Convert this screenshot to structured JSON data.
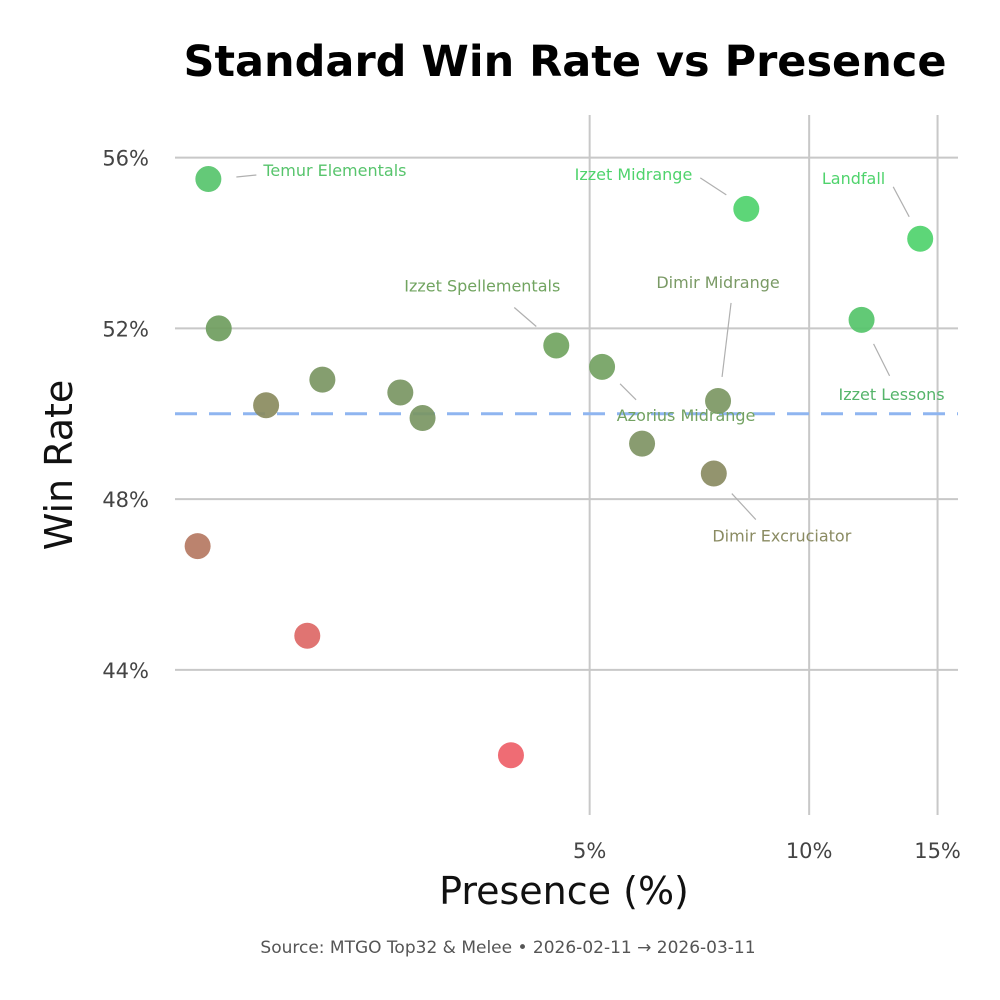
{
  "chart_data": {
    "type": "scatter",
    "title": "Standard Win Rate vs Presence",
    "xlabel": "Presence (%)",
    "ylabel": "Win Rate",
    "x_scale": "log",
    "xlim": [
      1.35,
      16
    ],
    "ylim": [
      40.6,
      57.0
    ],
    "x_ticks": [
      {
        "value": 5,
        "label": "5%"
      },
      {
        "value": 10,
        "label": "10%"
      },
      {
        "value": 15,
        "label": "15%"
      }
    ],
    "y_ticks": [
      {
        "value": 44,
        "label": "44%"
      },
      {
        "value": 48,
        "label": "48%"
      },
      {
        "value": 52,
        "label": "52%"
      },
      {
        "value": 56,
        "label": "56%"
      }
    ],
    "reference_line": {
      "y": 50,
      "color": "#8fb5f0",
      "style": "dashed"
    },
    "caption": "Source: MTGO Top32 & Melee  •  2026-02-11 → 2026-03-11",
    "points": [
      {
        "x": 1.5,
        "y": 55.5,
        "color": "#57c46c",
        "label": "Temur Elementals",
        "label_color": "#57c46c"
      },
      {
        "x": 8.2,
        "y": 54.8,
        "color": "#4fd36c",
        "label": "Izzet Midrange",
        "label_color": "#4fd36c"
      },
      {
        "x": 14.2,
        "y": 54.1,
        "color": "#4fd36c",
        "label": "Landfall",
        "label_color": "#4fd36c"
      },
      {
        "x": 1.55,
        "y": 52.0,
        "color": "#6f9d5e",
        "label": null
      },
      {
        "x": 11.8,
        "y": 52.2,
        "color": "#55c46a",
        "label": "Izzet Lessons",
        "label_color": "#55b46a"
      },
      {
        "x": 4.5,
        "y": 51.6,
        "color": "#71a460",
        "label": "Izzet Spellementals",
        "label_color": "#71a460"
      },
      {
        "x": 5.2,
        "y": 51.1,
        "color": "#73a262",
        "label": "Azorius Midrange",
        "label_color": "#73a262"
      },
      {
        "x": 7.5,
        "y": 50.3,
        "color": "#7c9763",
        "label": "Dimir Midrange",
        "label_color": "#7a9a65"
      },
      {
        "x": 2.15,
        "y": 50.8,
        "color": "#7b9663",
        "label": null
      },
      {
        "x": 2.75,
        "y": 50.5,
        "color": "#7a9663",
        "label": null
      },
      {
        "x": 2.95,
        "y": 49.9,
        "color": "#7a9663",
        "label": null
      },
      {
        "x": 1.8,
        "y": 50.2,
        "color": "#8a8b5e",
        "label": null
      },
      {
        "x": 5.9,
        "y": 49.3,
        "color": "#7f9464",
        "label": null
      },
      {
        "x": 7.4,
        "y": 48.6,
        "color": "#8a8b62",
        "label": "Dimir Excruciator",
        "label_color": "#8a8b62"
      },
      {
        "x": 1.45,
        "y": 46.9,
        "color": "#b57862",
        "label": null
      },
      {
        "x": 2.05,
        "y": 44.8,
        "color": "#dd6866",
        "label": null
      },
      {
        "x": 3.9,
        "y": 42.0,
        "color": "#ee5f68",
        "label": null
      }
    ]
  }
}
